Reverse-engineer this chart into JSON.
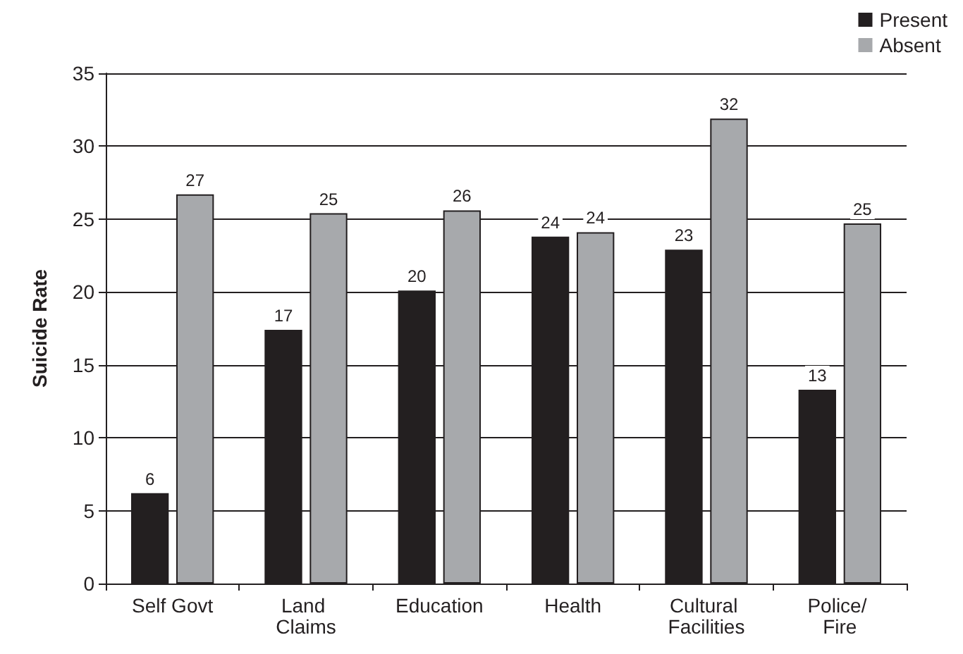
{
  "chart_data": {
    "type": "bar",
    "ylabel": "Suicide Rate",
    "categories": [
      "Self Govt",
      "Land Claims",
      "Education",
      "Health",
      "Cultural Facilities",
      "Police/ Fire"
    ],
    "series": [
      {
        "name": "Present",
        "color": "#231f20",
        "values": [
          6.2,
          17.4,
          20.1,
          23.8,
          22.9,
          13.3
        ],
        "value_labels": [
          "6",
          "17",
          "20",
          "24",
          "23",
          "13"
        ]
      },
      {
        "name": "Absent",
        "color": "#a7a9ac",
        "values": [
          26.7,
          25.4,
          25.6,
          24.1,
          31.9,
          24.7
        ],
        "value_labels": [
          "27",
          "25",
          "26",
          "24",
          "32",
          "25"
        ]
      }
    ],
    "ylim": [
      0,
      35
    ],
    "yticks": [
      0,
      5,
      10,
      15,
      20,
      25,
      30,
      35
    ],
    "grid": "y",
    "legend": "top right"
  }
}
